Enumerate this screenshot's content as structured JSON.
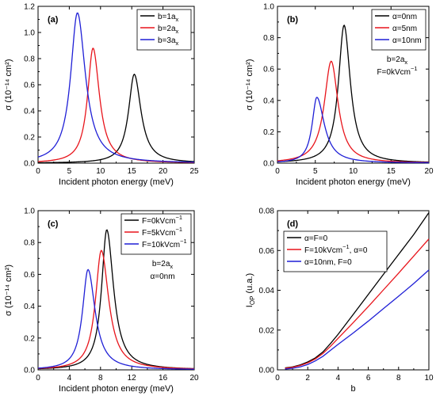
{
  "colors": {
    "black": "#000000",
    "red": "#e8141b",
    "blue": "#1f1fd6"
  },
  "chart_data": [
    {
      "type": "line",
      "panel_label": "(a)",
      "xlabel": "Incident photon energy (meV)",
      "ylabel": "σ (10⁻¹⁴ cm²)",
      "xlim": [
        0,
        25
      ],
      "ylim": [
        0,
        1.2
      ],
      "x_ticks": [
        0,
        5,
        10,
        15,
        20,
        25
      ],
      "y_ticks": [
        0.0,
        0.2,
        0.4,
        0.6,
        0.8,
        1.0,
        1.2
      ],
      "x_tick_labels": [
        "0",
        "5",
        "10",
        "15",
        "20",
        "25"
      ],
      "y_tick_labels": [
        "0.0",
        "0.2",
        "0.4",
        "0.6",
        "0.8",
        "1.0",
        "1.2"
      ],
      "legend_position": "top-right",
      "annotations": [],
      "series": [
        {
          "name": "b=1a",
          "name_sub": "x",
          "color": "black",
          "peak_x": 15.4,
          "peak_y": 0.68,
          "width_left": 1.1,
          "width_right": 1.3
        },
        {
          "name": "b=2a",
          "name_sub": "x",
          "color": "red",
          "peak_x": 8.8,
          "peak_y": 0.88,
          "width_left": 1.05,
          "width_right": 1.25
        },
        {
          "name": "b=3a",
          "name_sub": "x",
          "color": "blue",
          "peak_x": 6.3,
          "peak_y": 1.15,
          "width_left": 1.3,
          "width_right": 1.55
        }
      ]
    },
    {
      "type": "line",
      "panel_label": "(b)",
      "xlabel": "Incident photon energy (meV)",
      "ylabel": "σ (10⁻¹⁴ cm²)",
      "xlim": [
        0,
        20
      ],
      "ylim": [
        0,
        1.0
      ],
      "x_ticks": [
        0,
        5,
        10,
        15,
        20
      ],
      "y_ticks": [
        0.0,
        0.2,
        0.4,
        0.6,
        0.8,
        1.0
      ],
      "x_tick_labels": [
        "0",
        "5",
        "10",
        "15",
        "20"
      ],
      "y_tick_labels": [
        "0.0",
        "0.2",
        "0.4",
        "0.6",
        "0.8",
        "1.0"
      ],
      "legend_position": "top-right",
      "annotations": [
        {
          "text": "b=2a",
          "sub": "x",
          "sup": ""
        },
        {
          "text": "F=0kVcm",
          "sub": "",
          "sup": "−1"
        }
      ],
      "series": [
        {
          "name": "α=0nm",
          "name_sub": "",
          "color": "black",
          "peak_x": 8.8,
          "peak_y": 0.88,
          "width_left": 0.9,
          "width_right": 1.0
        },
        {
          "name": "α=5nm",
          "name_sub": "",
          "color": "red",
          "peak_x": 7.1,
          "peak_y": 0.65,
          "width_left": 1.1,
          "width_right": 1.1
        },
        {
          "name": "α=10nm",
          "name_sub": "",
          "color": "blue",
          "peak_x": 5.2,
          "peak_y": 0.42,
          "width_left": 0.75,
          "width_right": 1.2
        }
      ]
    },
    {
      "type": "line",
      "panel_label": "(c)",
      "xlabel": "Incident photon energy (meV)",
      "ylabel": "σ (10⁻¹⁴ cm²)",
      "xlim": [
        0,
        20
      ],
      "ylim": [
        0,
        1.0
      ],
      "x_ticks": [
        0,
        4,
        8,
        12,
        16,
        20
      ],
      "y_ticks": [
        0.0,
        0.2,
        0.4,
        0.6,
        0.8,
        1.0
      ],
      "x_tick_labels": [
        "0",
        "4",
        "8",
        "12",
        "16",
        "20"
      ],
      "y_tick_labels": [
        "0.0",
        "0.2",
        "0.4",
        "0.6",
        "0.8",
        "1.0"
      ],
      "legend_position": "top-right",
      "annotations": [
        {
          "text": "b=2a",
          "sub": "x",
          "sup": ""
        },
        {
          "text": "α=0nm",
          "sub": "",
          "sup": ""
        }
      ],
      "series": [
        {
          "name": "F=0kVcm",
          "name_sup": "−1",
          "color": "black",
          "peak_x": 8.8,
          "peak_y": 0.88,
          "width_left": 0.8,
          "width_right": 1.05
        },
        {
          "name": "F=5kVcm",
          "name_sup": "−1",
          "color": "red",
          "peak_x": 8.1,
          "peak_y": 0.75,
          "width_left": 0.9,
          "width_right": 1.15
        },
        {
          "name": "F=10kVcm",
          "name_sup": "−1",
          "color": "blue",
          "peak_x": 6.4,
          "peak_y": 0.63,
          "width_left": 0.85,
          "width_right": 1.1
        }
      ]
    },
    {
      "type": "line",
      "panel_label": "(d)",
      "xlabel": "b",
      "ylabel": "I",
      "ylabel_sub": "OP",
      "ylabel_tail": " (u.a.)",
      "xlim": [
        0,
        10
      ],
      "ylim": [
        0,
        0.08
      ],
      "x_ticks": [
        0,
        2,
        4,
        6,
        8,
        10
      ],
      "y_ticks": [
        0.0,
        0.02,
        0.04,
        0.06,
        0.08
      ],
      "x_tick_labels": [
        "0",
        "2",
        "4",
        "6",
        "8",
        "10"
      ],
      "y_tick_labels": [
        "0.00",
        "0.02",
        "0.04",
        "0.06",
        "0.08"
      ],
      "legend_position": "top-left",
      "annotations": [],
      "series": [
        {
          "name": "α=F=0",
          "color": "black",
          "x": [
            0.5,
            1.0,
            1.5,
            2.0,
            2.5,
            3.0,
            3.5,
            4.0,
            5.0,
            6.0,
            7.0,
            8.0,
            9.0,
            10.0
          ],
          "y": [
            0.001,
            0.0015,
            0.0025,
            0.004,
            0.006,
            0.009,
            0.0132,
            0.0178,
            0.0278,
            0.0379,
            0.048,
            0.058,
            0.068,
            0.079
          ]
        },
        {
          "name": "F=10kVcm",
          "name_sup": "−1",
          "name_tail": ", α=0",
          "color": "red",
          "x": [
            0.5,
            1.0,
            1.5,
            2.0,
            2.5,
            3.0,
            3.5,
            4.0,
            5.0,
            6.0,
            7.0,
            8.0,
            9.0,
            10.0
          ],
          "y": [
            0.0008,
            0.0013,
            0.0022,
            0.0035,
            0.0055,
            0.0082,
            0.0118,
            0.0158,
            0.0237,
            0.0318,
            0.0402,
            0.0486,
            0.0572,
            0.0658
          ]
        },
        {
          "name": "α=10nm, F=0",
          "color": "blue",
          "x": [
            0.5,
            1.0,
            1.5,
            2.0,
            2.5,
            3.0,
            3.5,
            4.0,
            5.0,
            6.0,
            7.0,
            8.0,
            9.0,
            10.0
          ],
          "y": [
            0.0004,
            0.0008,
            0.0015,
            0.0027,
            0.0045,
            0.0068,
            0.0098,
            0.0128,
            0.0185,
            0.0245,
            0.0308,
            0.037,
            0.0434,
            0.0502
          ]
        }
      ]
    }
  ]
}
